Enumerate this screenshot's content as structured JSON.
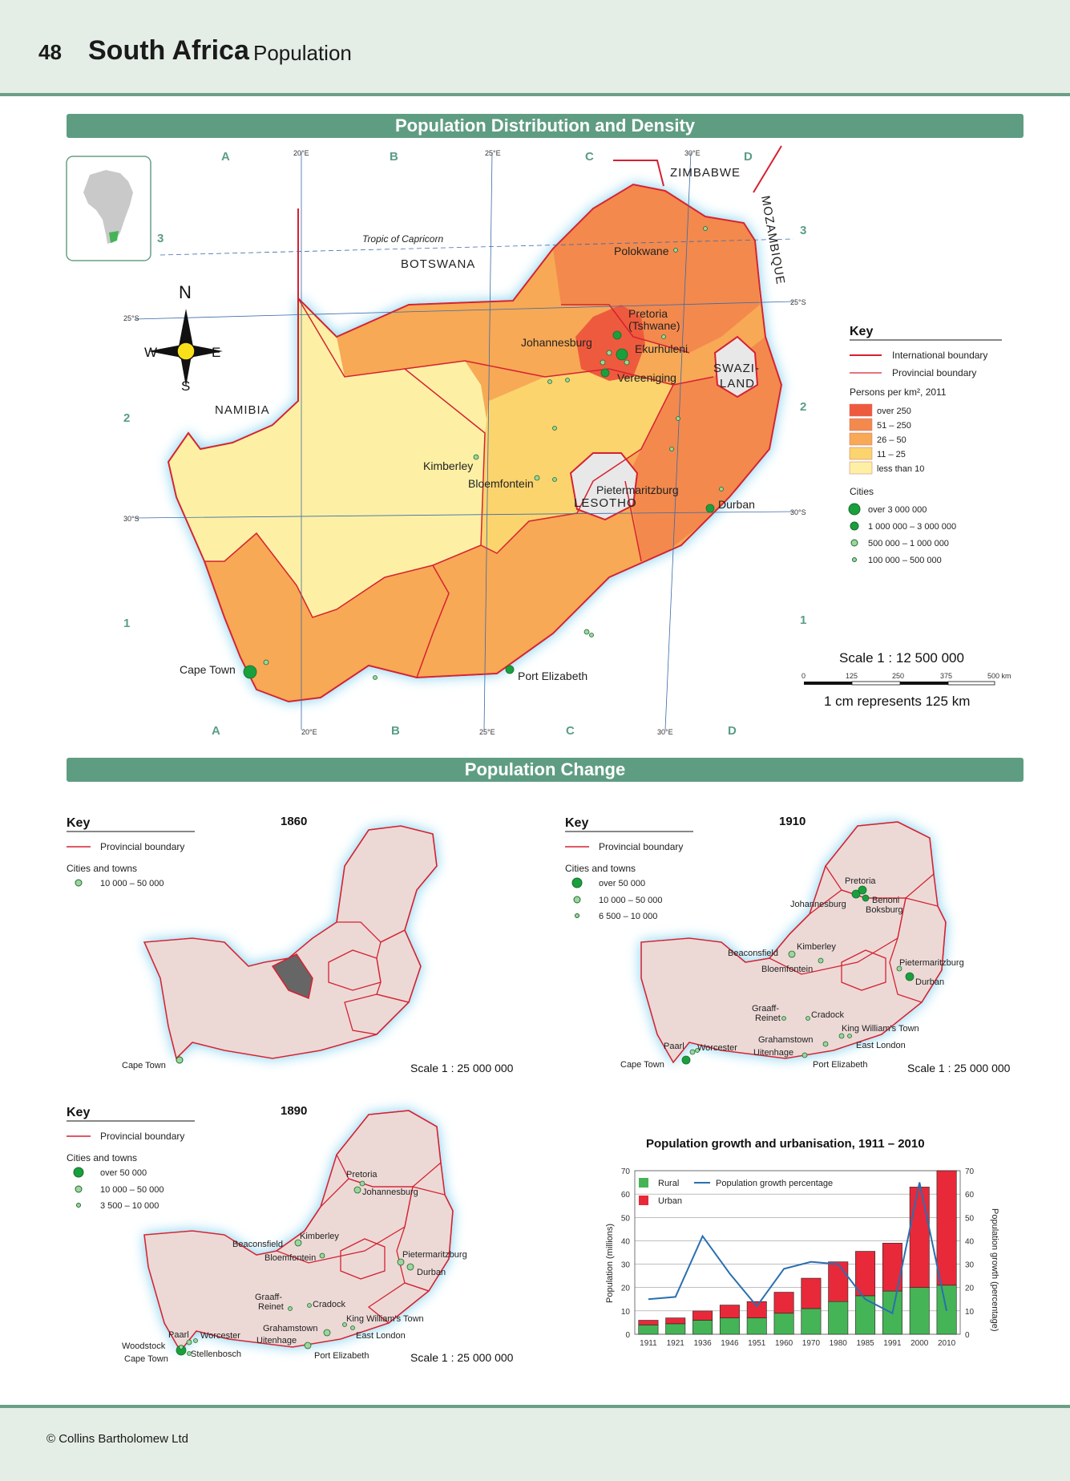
{
  "header": {
    "page_number": "48",
    "title": "South Africa",
    "subtitle": "Population"
  },
  "banners": {
    "distribution": "Population Distribution and Density",
    "change": "Population Change"
  },
  "main_map": {
    "grid_letters": [
      "A",
      "B",
      "C",
      "D"
    ],
    "grid_numbers": [
      "3",
      "2",
      "1"
    ],
    "lon_labels": [
      "20°E",
      "25°E",
      "30°E"
    ],
    "lat_labels": [
      "25°S",
      "30°S"
    ],
    "tropic": "Tropic of Capricorn",
    "compass": {
      "n": "N",
      "s": "S",
      "e": "E",
      "w": "W"
    },
    "countries": {
      "zimbabwe": "ZIMBABWE",
      "mozambique": "MOZAMBIQUE",
      "botswana": "BOTSWANA",
      "namibia": "NAMIBIA",
      "swazi1": "SWAZI-",
      "swazi2": "LAND",
      "lesotho": "LESOTHO"
    },
    "cities": {
      "polokwane": "Polokwane",
      "pretoria": "Pretoria",
      "tshwane": "(Tshwane)",
      "johannesburg": "Johannesburg",
      "ekurhuleni": "Ekurhuleni",
      "vereeniging": "Vereeniging",
      "kimberley": "Kimberley",
      "bloemfontein": "Bloemfontein",
      "pietermaritzburg": "Pietermaritzburg",
      "durban": "Durban",
      "cape_town": "Cape Town",
      "port_elizabeth": "Port Elizabeth"
    },
    "key": {
      "title": "Key",
      "intl": "International boundary",
      "prov": "Provincial boundary",
      "density_title": "Persons per km², 2011",
      "density": [
        {
          "label": "over 250",
          "color": "#ee5a3e"
        },
        {
          "label": "51 – 250",
          "color": "#f3894d"
        },
        {
          "label": "26 – 50",
          "color": "#f7a955"
        },
        {
          "label": "11 – 25",
          "color": "#fbd46d"
        },
        {
          "label": "less than 10",
          "color": "#fdf0a4"
        }
      ],
      "cities_title": "Cities",
      "cities": [
        "over 3 000 000",
        "1 000 000 – 3 000 000",
        "500 000 – 1 000 000",
        "100 000 – 500 000"
      ]
    },
    "scale": {
      "title": "Scale 1 : 12 500 000",
      "ticks": [
        "0",
        "125",
        "250",
        "375",
        "500 km"
      ],
      "note": "1 cm represents 125 km"
    }
  },
  "map_1860": {
    "year": "1860",
    "key_title": "Key",
    "prov": "Provincial boundary",
    "cities_title": "Cities and towns",
    "legend": [
      "10 000 – 50 000"
    ],
    "towns": {
      "cape_town": "Cape Town"
    },
    "scale": "Scale 1 : 25 000 000"
  },
  "map_1910": {
    "year": "1910",
    "key_title": "Key",
    "prov": "Provincial boundary",
    "cities_title": "Cities and towns",
    "legend": [
      "over 50 000",
      "10 000 – 50 000",
      "6 500 – 10 000"
    ],
    "towns": {
      "pretoria": "Pretoria",
      "johannesburg": "Johannesburg",
      "benoni": "Benoni",
      "boksburg": "Boksburg",
      "beaconsfield": "Beaconsfield",
      "kimberley": "Kimberley",
      "bloemfontein": "Bloemfontein",
      "pietermaritzburg": "Pietermaritzburg",
      "durban": "Durban",
      "graaff1": "Graaff-",
      "graaff2": "Reinet",
      "cradock": "Cradock",
      "kingwilliams": "King William's Town",
      "grahamstown": "Grahamstown",
      "eastlondon": "East London",
      "paarl": "Paarl",
      "worcester": "Worcester",
      "uitenhage": "Uitenhage",
      "capetown": "Cape Town",
      "portelizabeth": "Port Elizabeth"
    },
    "scale": "Scale 1 : 25 000 000"
  },
  "map_1890": {
    "year": "1890",
    "key_title": "Key",
    "prov": "Provincial boundary",
    "cities_title": "Cities and towns",
    "legend": [
      "over 50 000",
      "10 000 – 50 000",
      "3 500 – 10 000"
    ],
    "towns": {
      "pretoria": "Pretoria",
      "johannesburg": "Johannesburg",
      "kimberley": "Kimberley",
      "beaconsfield": "Beaconsfield",
      "bloemfontein": "Bloemfontein",
      "pietermaritzburg": "Pietermaritzburg",
      "durban": "Durban",
      "graaff1": "Graaff-",
      "graaff2": "Reinet",
      "cradock": "Cradock",
      "kingwilliams": "King William's Town",
      "grahamstown": "Grahamstown",
      "eastlondon": "East London",
      "paarl": "Paarl",
      "worcester": "Worcester",
      "uitenhage": "Uitenhage",
      "woodstock": "Woodstock",
      "stellenbosch": "Stellenbosch",
      "capetown": "Cape Town",
      "portelizabeth": "Port Elizabeth"
    },
    "scale": "Scale 1 : 25 000 000"
  },
  "colors": {
    "rural": "#45b456",
    "urban": "#e8293a",
    "line": "#2a6fb0",
    "boundary": "#d62030",
    "old_land": "#ecd9d6"
  },
  "chart_data": {
    "type": "bar",
    "title": "Population growth and urbanisation, 1911 – 2010",
    "categories": [
      "1911",
      "1921",
      "1936",
      "1946",
      "1951",
      "1960",
      "1970",
      "1980",
      "1985",
      "1991",
      "2000",
      "2010"
    ],
    "series": [
      {
        "name": "Rural",
        "values": [
          4.0,
          4.5,
          6.0,
          7.0,
          7.0,
          9.0,
          11.0,
          14.0,
          16.5,
          18.5,
          20.0,
          21.0
        ]
      },
      {
        "name": "Urban",
        "values": [
          2.0,
          2.5,
          4.0,
          5.5,
          7.0,
          9.0,
          13.0,
          17.0,
          19.0,
          20.5,
          43.0,
          49.0
        ]
      },
      {
        "name": "Population growth percentage",
        "values": [
          15,
          16,
          42,
          26,
          12,
          28,
          31,
          30,
          15,
          9,
          65,
          10
        ]
      }
    ],
    "ylabel": "Population (millions)",
    "y2label": "Population growth (percentage)",
    "ylim": [
      0,
      70
    ],
    "yticks": [
      "0",
      "10",
      "20",
      "30",
      "40",
      "50",
      "60",
      "70"
    ],
    "legend_position": "top-left",
    "grid": true
  },
  "footer": {
    "copyright": "© Collins Bartholomew Ltd"
  }
}
